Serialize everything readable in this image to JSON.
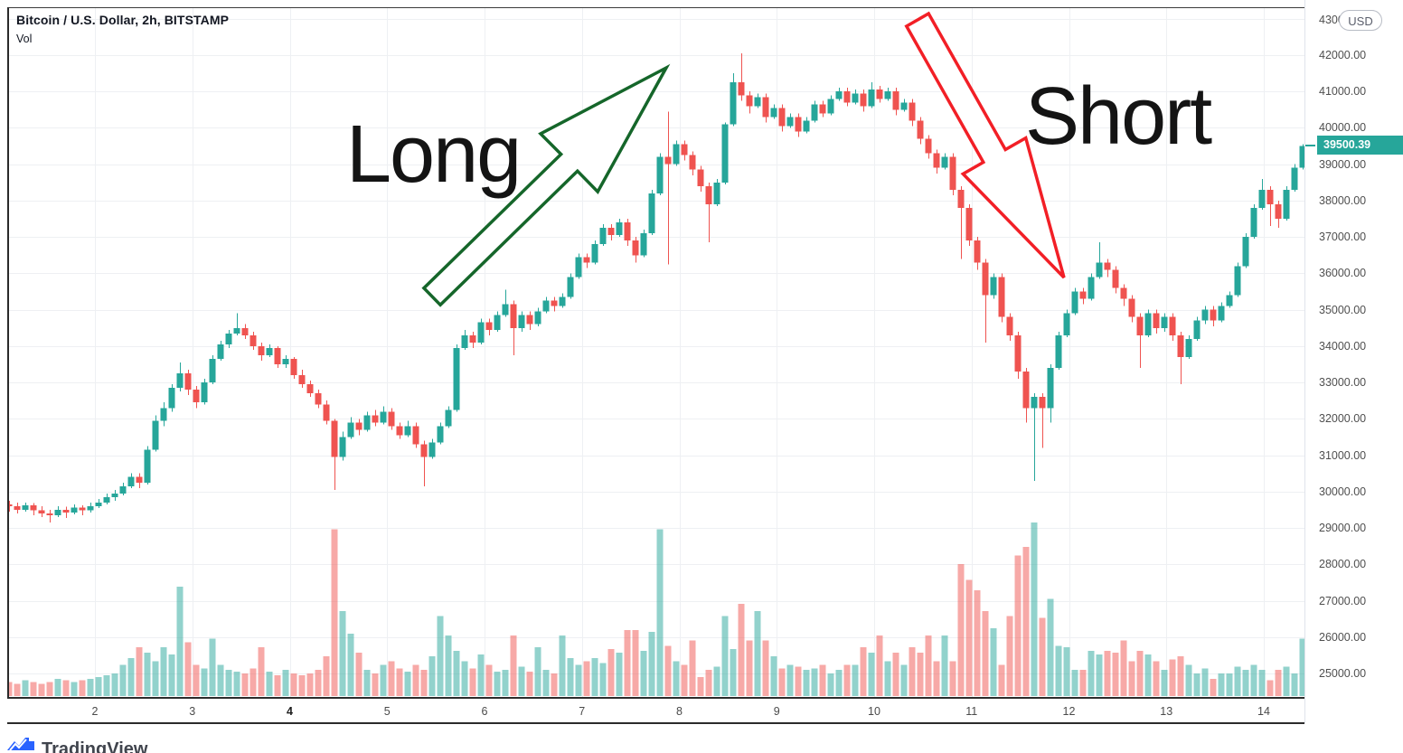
{
  "header": {
    "symbol_title": "Bitcoin / U.S. Dollar, 2h, BITSTAMP",
    "indicator_label": "Vol"
  },
  "annotations": {
    "long_label": "Long",
    "short_label": "Short",
    "long_arrow_color": "#15662a",
    "short_arrow_color": "#f21f26"
  },
  "price_scale": {
    "currency_badge": "USD",
    "top_label": "43000.00",
    "labels": [
      "42000.00",
      "41000.00",
      "40000.00",
      "39000.00",
      "38000.00",
      "37000.00",
      "36000.00",
      "35000.00",
      "34000.00",
      "33000.00",
      "32000.00",
      "31000.00",
      "30000.00",
      "29000.00",
      "28000.00",
      "27000.00",
      "26000.00",
      "25000.00"
    ],
    "last_price": "39500.39",
    "last_price_color": "#26a69a"
  },
  "time_scale": {
    "labels": [
      {
        "text": "2",
        "bold": false
      },
      {
        "text": "3",
        "bold": false
      },
      {
        "text": "4",
        "bold": true
      },
      {
        "text": "5",
        "bold": false
      },
      {
        "text": "6",
        "bold": false
      },
      {
        "text": "7",
        "bold": false
      },
      {
        "text": "8",
        "bold": false
      },
      {
        "text": "9",
        "bold": false
      },
      {
        "text": "10",
        "bold": false
      },
      {
        "text": "11",
        "bold": false
      },
      {
        "text": "12",
        "bold": false
      },
      {
        "text": "13",
        "bold": false
      },
      {
        "text": "14",
        "bold": false
      }
    ]
  },
  "watermark": {
    "text": "TradingView",
    "icon_color": "#2962ff"
  },
  "chart_data": {
    "type": "candlestick_with_volume",
    "title": "Bitcoin / U.S. Dollar, 2h, BITSTAMP",
    "interval": "2h",
    "exchange": "BITSTAMP",
    "last_price": 39500.39,
    "up_color": "#26a69a",
    "down_color": "#ef5350",
    "vol_up_color": "rgba(38,166,154,0.5)",
    "vol_down_color": "rgba(239,83,80,0.5)",
    "grid_color": "#eef0f3",
    "y_axis": {
      "min": 25000,
      "max": 43250,
      "tick_step": 1000,
      "grid": true
    },
    "x_axis": {
      "day_labels": [
        2,
        3,
        4,
        5,
        6,
        7,
        8,
        9,
        10,
        11,
        12,
        13,
        14
      ],
      "grid": true
    },
    "candles_format": [
      "open",
      "high",
      "low",
      "close",
      "volume_rel"
    ],
    "candles": [
      [
        29650,
        29750,
        29450,
        29600,
        8
      ],
      [
        29600,
        29700,
        29400,
        29500,
        7
      ],
      [
        29500,
        29700,
        29450,
        29620,
        9
      ],
      [
        29620,
        29680,
        29350,
        29480,
        8
      ],
      [
        29480,
        29600,
        29300,
        29400,
        7
      ],
      [
        29400,
        29500,
        29150,
        29350,
        8
      ],
      [
        29350,
        29600,
        29300,
        29500,
        10
      ],
      [
        29500,
        29580,
        29280,
        29430,
        9
      ],
      [
        29430,
        29650,
        29380,
        29560,
        8
      ],
      [
        29560,
        29620,
        29350,
        29480,
        9
      ],
      [
        29480,
        29700,
        29430,
        29600,
        10
      ],
      [
        29600,
        29800,
        29550,
        29700,
        11
      ],
      [
        29700,
        29950,
        29650,
        29850,
        12
      ],
      [
        29850,
        30050,
        29750,
        29950,
        13
      ],
      [
        29950,
        30250,
        29900,
        30150,
        18
      ],
      [
        30150,
        30500,
        30100,
        30400,
        22
      ],
      [
        30400,
        30500,
        30100,
        30250,
        28
      ],
      [
        30250,
        31250,
        30200,
        31150,
        25
      ],
      [
        31150,
        32100,
        31100,
        31950,
        20
      ],
      [
        31950,
        32450,
        31800,
        32300,
        28
      ],
      [
        32300,
        32950,
        32200,
        32850,
        24
      ],
      [
        32850,
        33550,
        32750,
        33250,
        63
      ],
      [
        33250,
        33350,
        32650,
        32800,
        31
      ],
      [
        32800,
        32900,
        32300,
        32450,
        18
      ],
      [
        32450,
        33100,
        32400,
        33000,
        16
      ],
      [
        33000,
        33750,
        32950,
        33650,
        33
      ],
      [
        33650,
        34150,
        33600,
        34050,
        18
      ],
      [
        34050,
        34450,
        33950,
        34350,
        15
      ],
      [
        34350,
        34900,
        34300,
        34500,
        14
      ],
      [
        34500,
        34600,
        34200,
        34300,
        13
      ],
      [
        34300,
        34400,
        33900,
        34000,
        16
      ],
      [
        34000,
        34100,
        33600,
        33750,
        28
      ],
      [
        33750,
        34050,
        33700,
        33950,
        14
      ],
      [
        33950,
        34000,
        33400,
        33500,
        12
      ],
      [
        33500,
        33750,
        33400,
        33650,
        15
      ],
      [
        33650,
        33700,
        33100,
        33200,
        13
      ],
      [
        33200,
        33350,
        32850,
        32950,
        12
      ],
      [
        32950,
        33050,
        32600,
        32700,
        13
      ],
      [
        32700,
        32800,
        32300,
        32400,
        15
      ],
      [
        32400,
        32500,
        31850,
        31950,
        23
      ],
      [
        31950,
        32000,
        30050,
        30950,
        96
      ],
      [
        30950,
        31650,
        30850,
        31500,
        49
      ],
      [
        31500,
        32050,
        31450,
        31900,
        36
      ],
      [
        31900,
        32000,
        31550,
        31700,
        25
      ],
      [
        31700,
        32200,
        31650,
        32100,
        15
      ],
      [
        32100,
        32250,
        31800,
        31900,
        13
      ],
      [
        31900,
        32350,
        31850,
        32200,
        18
      ],
      [
        32200,
        32300,
        31700,
        31800,
        20
      ],
      [
        31800,
        31900,
        31450,
        31550,
        16
      ],
      [
        31550,
        31950,
        31500,
        31800,
        14
      ],
      [
        31800,
        31900,
        31200,
        31300,
        18
      ],
      [
        31300,
        31400,
        30150,
        30950,
        15
      ],
      [
        30950,
        31450,
        30900,
        31350,
        23
      ],
      [
        31350,
        31900,
        31300,
        31800,
        46
      ],
      [
        31800,
        32350,
        31750,
        32250,
        35
      ],
      [
        32250,
        34050,
        32200,
        33950,
        26
      ],
      [
        33950,
        34450,
        33900,
        34300,
        20
      ],
      [
        34300,
        34400,
        33950,
        34100,
        16
      ],
      [
        34100,
        34750,
        34050,
        34650,
        24
      ],
      [
        34650,
        34750,
        34300,
        34450,
        18
      ],
      [
        34450,
        34950,
        34400,
        34850,
        14
      ],
      [
        34850,
        35550,
        34800,
        35150,
        15
      ],
      [
        35150,
        35250,
        33750,
        34500,
        35
      ],
      [
        34500,
        34950,
        34400,
        34850,
        17
      ],
      [
        34850,
        34950,
        34450,
        34600,
        14
      ],
      [
        34600,
        35050,
        34550,
        34950,
        28
      ],
      [
        34950,
        35350,
        34900,
        35250,
        15
      ],
      [
        35250,
        35350,
        34950,
        35100,
        13
      ],
      [
        35100,
        35450,
        35050,
        35350,
        35
      ],
      [
        35350,
        36000,
        35300,
        35900,
        22
      ],
      [
        35900,
        36550,
        35850,
        36450,
        18
      ],
      [
        36450,
        36550,
        36150,
        36300,
        20
      ],
      [
        36300,
        36900,
        36250,
        36800,
        22
      ],
      [
        36800,
        37350,
        36750,
        37250,
        19
      ],
      [
        37250,
        37350,
        36900,
        37050,
        27
      ],
      [
        37050,
        37500,
        37000,
        37400,
        25
      ],
      [
        37400,
        37500,
        36750,
        36900,
        38
      ],
      [
        36900,
        37000,
        36300,
        36500,
        38
      ],
      [
        36500,
        37200,
        36450,
        37100,
        26
      ],
      [
        37100,
        38300,
        37050,
        38200,
        37
      ],
      [
        38200,
        39300,
        38150,
        39200,
        96
      ],
      [
        39200,
        40450,
        36250,
        39000,
        29
      ],
      [
        39000,
        39650,
        38950,
        39550,
        20
      ],
      [
        39550,
        39650,
        39100,
        39250,
        18
      ],
      [
        39250,
        39350,
        38700,
        38850,
        32
      ],
      [
        38850,
        38950,
        38250,
        38400,
        11
      ],
      [
        38400,
        38500,
        36850,
        37900,
        15
      ],
      [
        37900,
        38600,
        37850,
        38500,
        17
      ],
      [
        38500,
        40150,
        38450,
        40100,
        46
      ],
      [
        40100,
        41500,
        40050,
        41250,
        27
      ],
      [
        41250,
        42050,
        40750,
        40900,
        53
      ],
      [
        40900,
        41000,
        40400,
        40600,
        32
      ],
      [
        40600,
        40950,
        40550,
        40850,
        49
      ],
      [
        40850,
        40950,
        40150,
        40300,
        32
      ],
      [
        40300,
        40650,
        40250,
        40550,
        23
      ],
      [
        40550,
        40650,
        39900,
        40050,
        16
      ],
      [
        40050,
        40400,
        40000,
        40300,
        18
      ],
      [
        40300,
        40400,
        39750,
        39900,
        17
      ],
      [
        39900,
        40300,
        39850,
        40200,
        15
      ],
      [
        40200,
        40750,
        40150,
        40650,
        16
      ],
      [
        40650,
        40750,
        40300,
        40400,
        18
      ],
      [
        40400,
        40900,
        40350,
        40800,
        13
      ],
      [
        40800,
        41100,
        40750,
        41000,
        15
      ],
      [
        41000,
        41100,
        40600,
        40700,
        18
      ],
      [
        40700,
        41050,
        40650,
        40950,
        18
      ],
      [
        40950,
        41050,
        40450,
        40600,
        28
      ],
      [
        40600,
        41250,
        40550,
        41050,
        25
      ],
      [
        41050,
        41150,
        40700,
        40800,
        35
      ],
      [
        40800,
        41100,
        40750,
        41000,
        20
      ],
      [
        41000,
        41100,
        40350,
        40500,
        25
      ],
      [
        40500,
        40800,
        40450,
        40700,
        18
      ],
      [
        40700,
        40800,
        40050,
        40200,
        28
      ],
      [
        40200,
        40300,
        39550,
        39700,
        25
      ],
      [
        39700,
        39800,
        39150,
        39300,
        35
      ],
      [
        39300,
        39400,
        38750,
        38900,
        20
      ],
      [
        38900,
        39300,
        38850,
        39200,
        35
      ],
      [
        39200,
        39300,
        38150,
        38300,
        20
      ],
      [
        38300,
        38400,
        36400,
        37800,
        76
      ],
      [
        37800,
        37900,
        36750,
        36900,
        67
      ],
      [
        36900,
        37000,
        36100,
        36300,
        61
      ],
      [
        36300,
        36400,
        34100,
        35400,
        49
      ],
      [
        35400,
        36000,
        35300,
        35900,
        39
      ],
      [
        35900,
        36000,
        34650,
        34800,
        18
      ],
      [
        34800,
        34900,
        34150,
        34300,
        46
      ],
      [
        34300,
        34400,
        33100,
        33300,
        81
      ],
      [
        33300,
        33400,
        31900,
        32300,
        86
      ],
      [
        32300,
        32700,
        30300,
        32600,
        100
      ],
      [
        32600,
        32700,
        31200,
        32300,
        45
      ],
      [
        32300,
        33500,
        31900,
        33400,
        56
      ],
      [
        33400,
        34400,
        33350,
        34300,
        29
      ],
      [
        34300,
        35000,
        34250,
        34900,
        28
      ],
      [
        34900,
        35600,
        34850,
        35500,
        15
      ],
      [
        35500,
        35600,
        35150,
        35300,
        15
      ],
      [
        35300,
        36000,
        35250,
        35900,
        26
      ],
      [
        35900,
        36850,
        35850,
        36300,
        24
      ],
      [
        36300,
        36400,
        35900,
        36100,
        26
      ],
      [
        36100,
        36200,
        35450,
        35600,
        25
      ],
      [
        35600,
        35700,
        35100,
        35300,
        32
      ],
      [
        35300,
        35400,
        34650,
        34800,
        20
      ],
      [
        34800,
        34900,
        33400,
        34300,
        26
      ],
      [
        34300,
        35000,
        34250,
        34900,
        24
      ],
      [
        34900,
        35000,
        34350,
        34500,
        20
      ],
      [
        34500,
        34900,
        34400,
        34800,
        15
      ],
      [
        34800,
        34900,
        34150,
        34300,
        21
      ],
      [
        34300,
        34400,
        32950,
        33700,
        23
      ],
      [
        33700,
        34300,
        33650,
        34200,
        18
      ],
      [
        34200,
        34800,
        34150,
        34700,
        13
      ],
      [
        34700,
        35100,
        34600,
        35000,
        16
      ],
      [
        35000,
        35100,
        34550,
        34700,
        10
      ],
      [
        34700,
        35200,
        34650,
        35100,
        13
      ],
      [
        35100,
        35500,
        35050,
        35400,
        13
      ],
      [
        35400,
        36300,
        35350,
        36200,
        17
      ],
      [
        36200,
        37100,
        36150,
        37000,
        15
      ],
      [
        37000,
        37900,
        36950,
        37800,
        18
      ],
      [
        37800,
        38600,
        37750,
        38300,
        15
      ],
      [
        38300,
        38400,
        37300,
        37900,
        9
      ],
      [
        37900,
        38000,
        37250,
        37500,
        15
      ],
      [
        37500,
        38400,
        37450,
        38300,
        17
      ],
      [
        38300,
        39000,
        38250,
        38900,
        13
      ],
      [
        38900,
        39550,
        38850,
        39500,
        33
      ]
    ]
  }
}
